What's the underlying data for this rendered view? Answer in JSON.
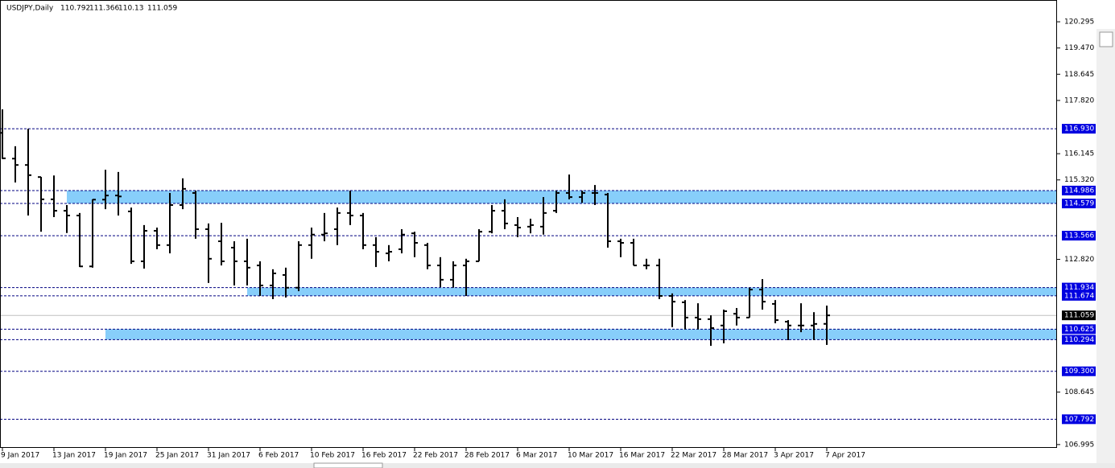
{
  "chart_data": {
    "type": "ohlc",
    "title": "USDJPY,Daily",
    "categories": [
      "9 Jan 2017",
      null,
      null,
      null,
      "13 Jan 2017",
      null,
      null,
      null,
      "19 Jan 2017",
      null,
      null,
      null,
      "25 Jan 2017",
      null,
      null,
      null,
      "31 Jan 2017",
      null,
      null,
      null,
      "6 Feb 2017",
      null,
      null,
      null,
      "10 Feb 2017",
      null,
      null,
      null,
      "16 Feb 2017",
      null,
      null,
      null,
      "22 Feb 2017",
      null,
      null,
      null,
      "28 Feb 2017",
      null,
      null,
      null,
      "6 Mar 2017",
      null,
      null,
      null,
      "10 Mar 2017",
      null,
      null,
      null,
      "16 Mar 2017",
      null,
      null,
      null,
      "22 Mar 2017",
      null,
      null,
      null,
      "28 Mar 2017",
      null,
      null,
      null,
      "3 Apr 2017",
      null,
      null,
      null,
      "7 Apr 2017"
    ],
    "open": [
      116.8,
      115.99,
      115.79,
      115.41,
      114.71,
      114.35,
      114.2,
      112.6,
      114.7,
      114.83,
      114.33,
      112.76,
      113.72,
      113.27,
      114.53,
      114.91,
      113.77,
      113.39,
      113.19,
      112.76,
      112.63,
      112.0,
      112.33,
      111.93,
      113.27,
      113.6,
      113.77,
      114.28,
      114.2,
      113.27,
      113.01,
      113.14,
      113.64,
      113.27,
      112.63,
      112.18,
      112.63,
      112.76,
      113.69,
      114.35,
      113.9,
      113.85,
      113.85,
      114.35,
      114.91,
      114.78,
      114.91,
      114.86,
      113.39,
      113.34,
      112.63,
      112.63,
      111.67,
      111.47,
      110.99,
      110.94,
      110.74,
      111.11,
      110.99,
      111.87,
      111.42,
      110.86,
      110.74,
      110.74,
      110.792
    ],
    "high": [
      117.54,
      116.38,
      116.93,
      115.415,
      115.46,
      114.53,
      114.28,
      114.71,
      115.64,
      115.57,
      114.45,
      113.9,
      113.82,
      114.91,
      115.37,
      114.98,
      113.95,
      113.97,
      113.39,
      113.47,
      112.76,
      112.51,
      112.56,
      113.39,
      113.82,
      114.28,
      114.45,
      114.98,
      114.28,
      113.52,
      113.27,
      113.77,
      113.69,
      113.34,
      112.89,
      112.76,
      112.84,
      113.77,
      114.53,
      114.71,
      114.15,
      114.1,
      114.78,
      114.98,
      115.49,
      114.98,
      115.16,
      114.91,
      113.47,
      113.47,
      112.84,
      112.84,
      111.75,
      111.54,
      111.44,
      111.06,
      111.24,
      111.29,
      111.93,
      112.2,
      111.54,
      110.91,
      111.44,
      111.16,
      111.366
    ],
    "low": [
      115.98,
      115.24,
      114.2,
      113.69,
      114.15,
      113.65,
      112.58,
      112.56,
      114.4,
      114.2,
      112.68,
      112.53,
      113.14,
      113.01,
      114.4,
      113.47,
      112.08,
      112.63,
      112.0,
      112.0,
      111.67,
      111.57,
      111.62,
      111.82,
      112.84,
      113.39,
      113.27,
      113.9,
      113.14,
      112.58,
      112.76,
      113.01,
      112.89,
      112.51,
      111.95,
      111.93,
      111.67,
      112.76,
      113.64,
      113.77,
      113.52,
      113.64,
      113.6,
      114.28,
      114.71,
      114.6,
      114.53,
      113.19,
      112.89,
      112.63,
      112.51,
      111.57,
      110.69,
      110.62,
      110.62,
      110.1,
      110.18,
      110.74,
      110.99,
      111.24,
      110.81,
      110.28,
      110.53,
      110.28,
      110.13
    ],
    "close": [
      116.0,
      115.79,
      115.47,
      114.71,
      114.35,
      114.2,
      112.6,
      114.7,
      114.83,
      114.8,
      112.76,
      113.72,
      113.27,
      114.53,
      115.04,
      113.77,
      112.84,
      112.76,
      112.76,
      112.56,
      112.0,
      112.38,
      111.93,
      113.27,
      113.6,
      113.64,
      114.28,
      114.2,
      113.27,
      113.06,
      113.06,
      113.6,
      113.34,
      112.63,
      112.18,
      112.63,
      112.76,
      113.69,
      114.35,
      113.95,
      113.82,
      113.9,
      114.28,
      114.91,
      114.78,
      114.91,
      114.91,
      113.39,
      113.34,
      112.63,
      112.63,
      111.67,
      111.49,
      110.99,
      110.94,
      110.66,
      111.19,
      110.99,
      111.87,
      111.49,
      110.91,
      110.74,
      110.74,
      110.79,
      111.059
    ],
    "ylim": [
      106.89,
      120.98
    ],
    "yticks": [
      120.295,
      {
        "value": 119.47,
        "label": "119.470"
      },
      118.645,
      {
        "value": 117.82,
        "label": "117.820"
      },
      116.145,
      {
        "value": 115.32,
        "label": "115.320"
      },
      {
        "value": 112.82,
        "label": "112.820"
      },
      108.645,
      106.995
    ],
    "levels": [
      {
        "value": 116.93,
        "label": "116.930"
      },
      114.986,
      114.579,
      113.566,
      111.934,
      111.674,
      110.625,
      110.294,
      {
        "value": 109.3,
        "label": "109.300"
      },
      107.792
    ],
    "level_color": "#000080",
    "zone_color": "#87cefa",
    "bar_color": "#000000"
  }
}
